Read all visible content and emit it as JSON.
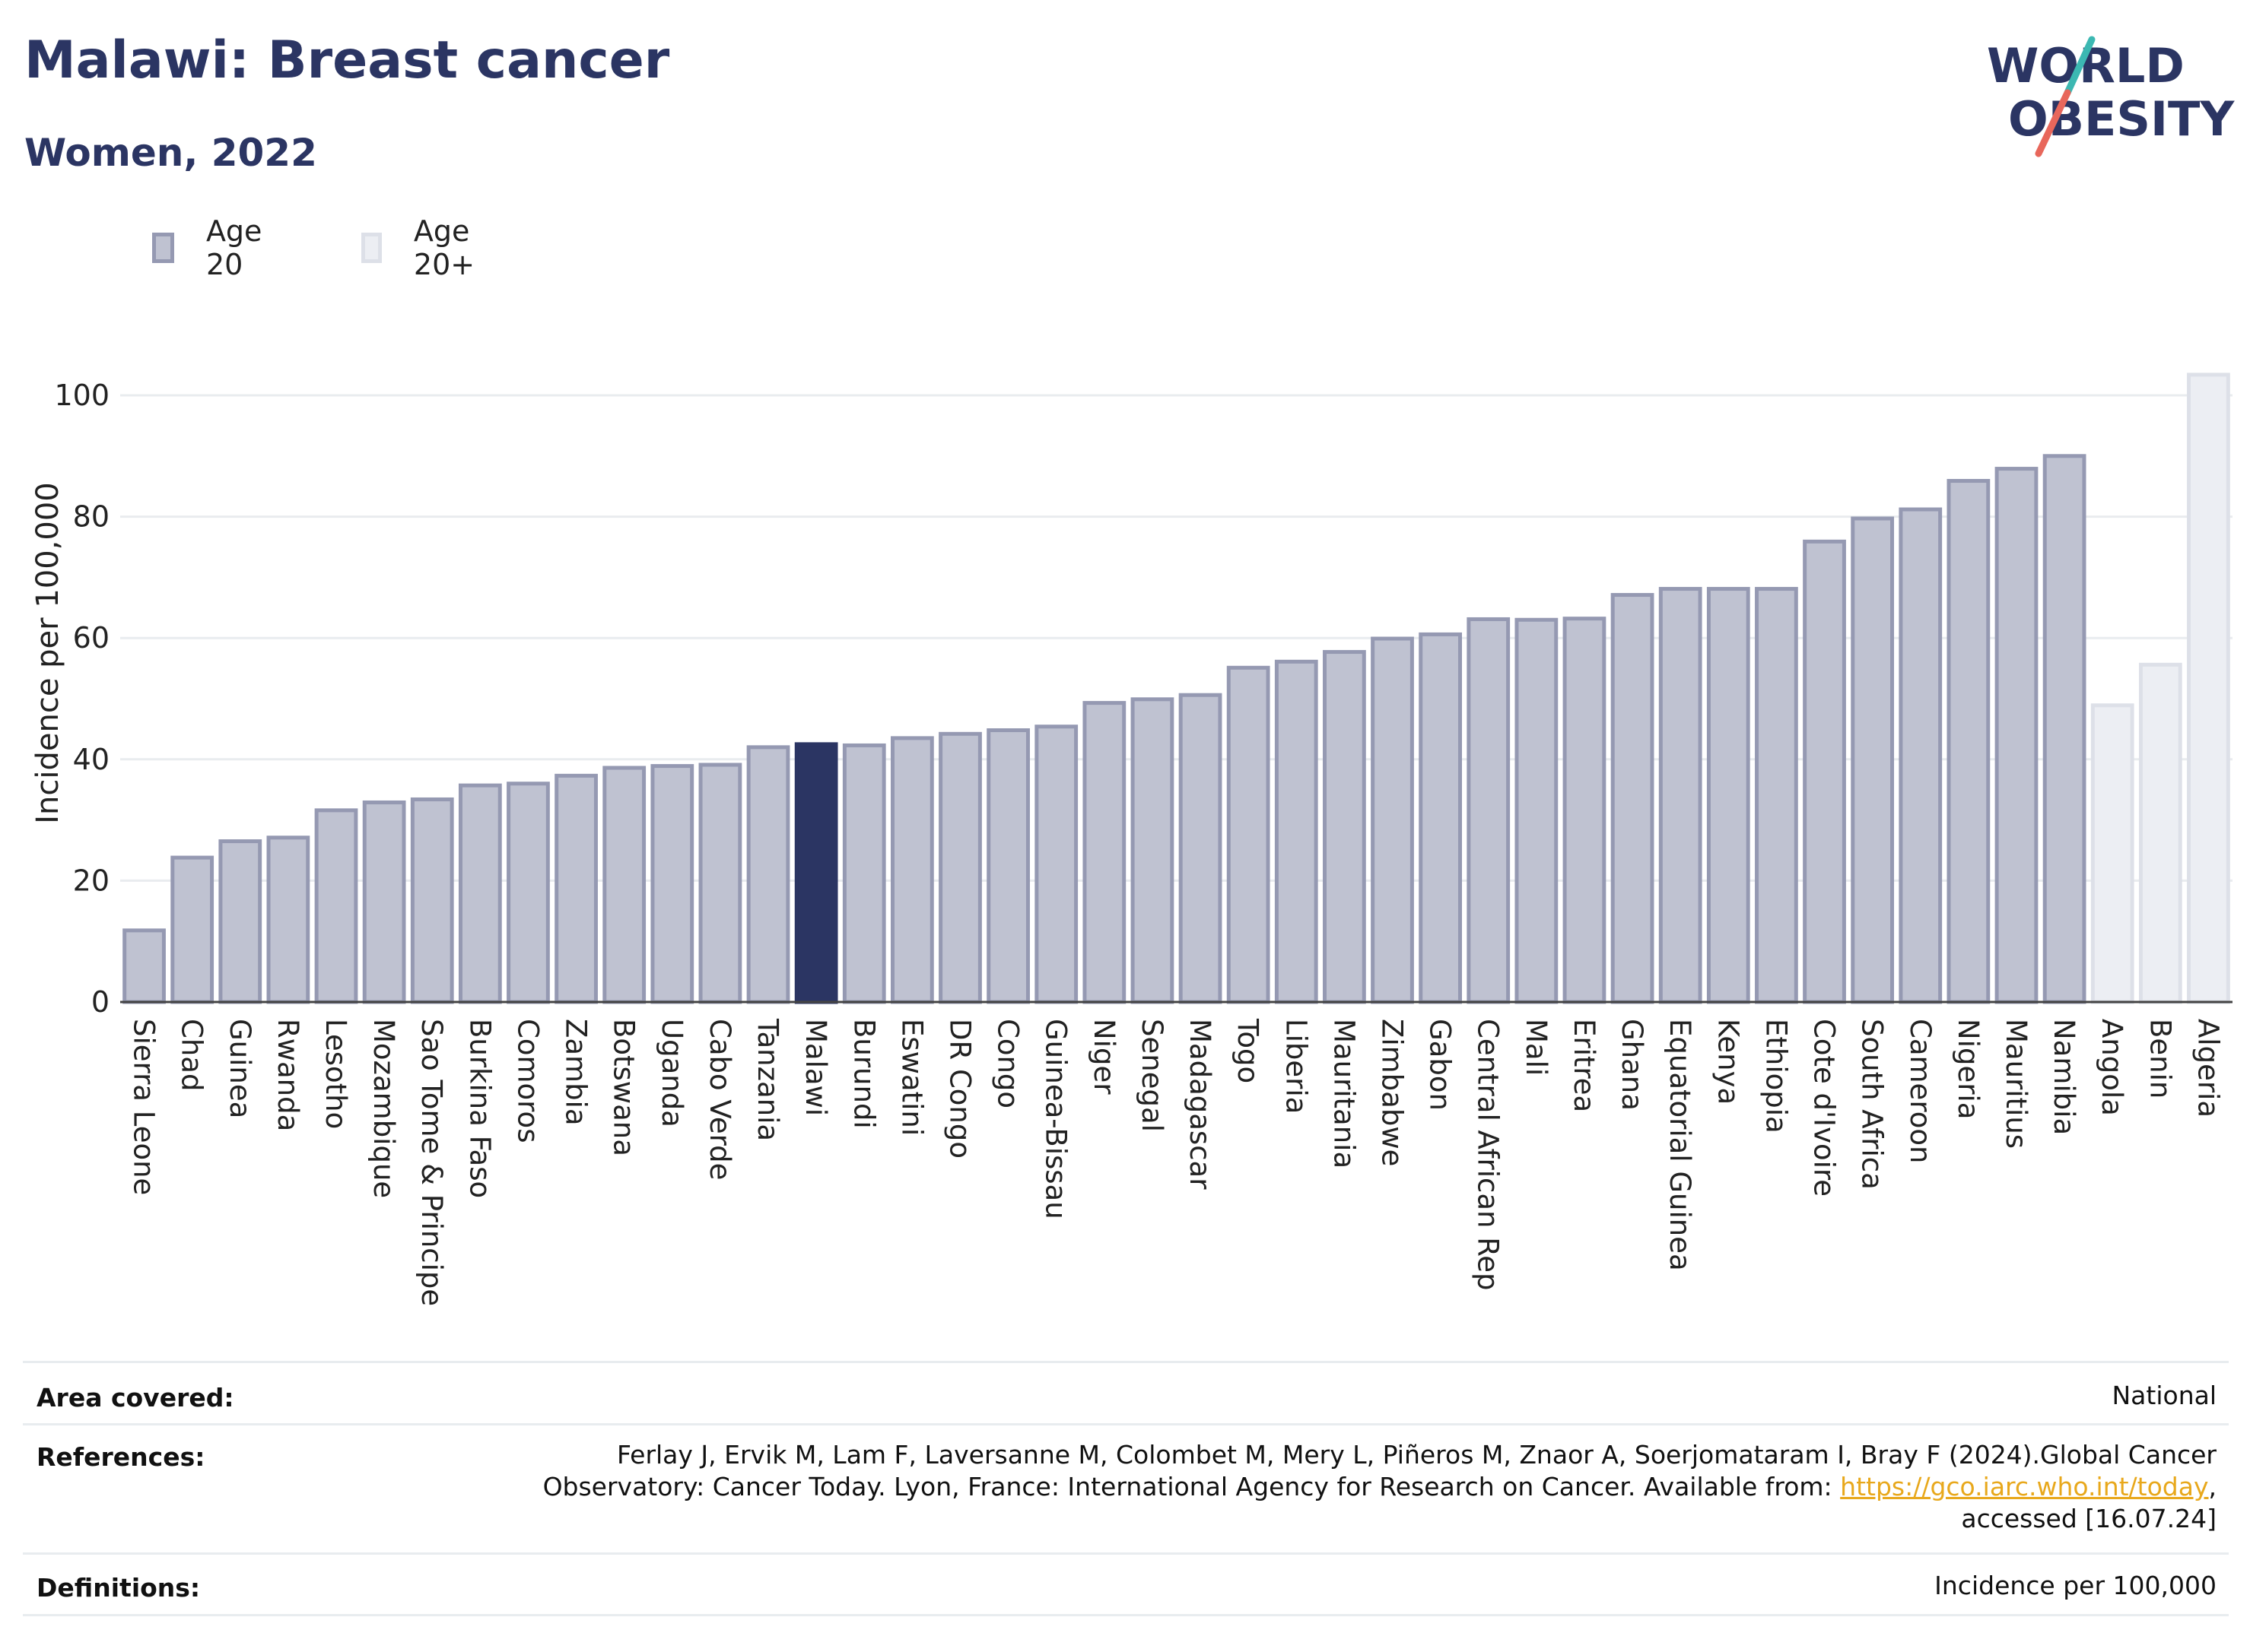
{
  "header": {
    "title": "Malawi: Breast cancer",
    "subtitle": "Women, 2022"
  },
  "logo": {
    "line1": "WORLD",
    "line2": "OBESITY"
  },
  "legend": [
    {
      "label": "Age 20",
      "fill": "#bfc2d1",
      "stroke": "#9599b2"
    },
    {
      "label": "Age 20+",
      "fill": "#eceef3",
      "stroke": "#dde0e8"
    }
  ],
  "colors": {
    "highlight": "#2b3563",
    "age20_fill": "#bfc2d1",
    "age20_stroke": "#9599b2",
    "age20plus_fill": "#eceef3",
    "age20plus_stroke": "#dde0e8",
    "title": "#2b3563",
    "link": "#e8a81c"
  },
  "chart_data": {
    "type": "bar",
    "ylabel": "Incidence per 100,000",
    "xlabel": "",
    "ylim": [
      0,
      105
    ],
    "yticks": [
      0,
      20,
      40,
      60,
      80,
      100
    ],
    "grid": true,
    "legend_position": "top-left",
    "highlight": "Malawi",
    "categories": [
      "Sierra Leone",
      "Chad",
      "Guinea",
      "Rwanda",
      "Lesotho",
      "Mozambique",
      "Sao Tome & Principe",
      "Burkina Faso",
      "Comoros",
      "Zambia",
      "Botswana",
      "Uganda",
      "Cabo Verde",
      "Tanzania",
      "Malawi",
      "Burundi",
      "Eswatini",
      "DR Congo",
      "Congo",
      "Guinea-Bissau",
      "Niger",
      "Senegal",
      "Madagascar",
      "Togo",
      "Liberia",
      "Mauritania",
      "Zimbabwe",
      "Gabon",
      "Central African Rep",
      "Mali",
      "Eritrea",
      "Ghana",
      "Equatorial Guinea",
      "Kenya",
      "Ethiopia",
      "Cote d'Ivoire",
      "South Africa",
      "Cameroon",
      "Nigeria",
      "Mauritius",
      "Namibia",
      "Angola",
      "Benin",
      "Algeria"
    ],
    "values": [
      11.8,
      23.8,
      26.5,
      27.1,
      31.6,
      32.9,
      33.4,
      35.7,
      36.0,
      37.3,
      38.6,
      38.9,
      39.1,
      42.0,
      42.5,
      42.3,
      43.5,
      44.2,
      44.8,
      45.4,
      49.3,
      49.9,
      50.6,
      55.1,
      56.1,
      57.7,
      59.9,
      60.6,
      63.1,
      63.0,
      63.2,
      67.1,
      68.1,
      68.1,
      68.1,
      75.9,
      79.7,
      81.2,
      85.9,
      87.9,
      90.0,
      48.9,
      55.6,
      103.4
    ],
    "series_group": [
      "Age 20",
      "Age 20",
      "Age 20",
      "Age 20",
      "Age 20",
      "Age 20",
      "Age 20",
      "Age 20",
      "Age 20",
      "Age 20",
      "Age 20",
      "Age 20",
      "Age 20",
      "Age 20",
      "Age 20",
      "Age 20",
      "Age 20",
      "Age 20",
      "Age 20",
      "Age 20",
      "Age 20",
      "Age 20",
      "Age 20",
      "Age 20",
      "Age 20",
      "Age 20",
      "Age 20",
      "Age 20",
      "Age 20",
      "Age 20",
      "Age 20",
      "Age 20",
      "Age 20",
      "Age 20",
      "Age 20",
      "Age 20",
      "Age 20",
      "Age 20",
      "Age 20",
      "Age 20",
      "Age 20",
      "Age 20+",
      "Age 20+",
      "Age 20+"
    ]
  },
  "footer": {
    "area_label": "Area covered:",
    "area_value": "National",
    "references_label": "References:",
    "references_line1": "Ferlay J, Ervik M, Lam F, Laversanne M, Colombet M, Mery L, Piñeros M, Znaor A, Soerjomataram I, Bray F (2024).Global Cancer",
    "references_line2_pre": "Observatory: Cancer Today. Lyon, France: International Agency for Research on Cancer. Available from: ",
    "references_link": "https://gco.iarc.who.int/today",
    "references_line2_post": ",",
    "references_line3": "accessed [16.07.24]",
    "definitions_label": "Definitions:",
    "definitions_value": "Incidence per 100,000"
  }
}
